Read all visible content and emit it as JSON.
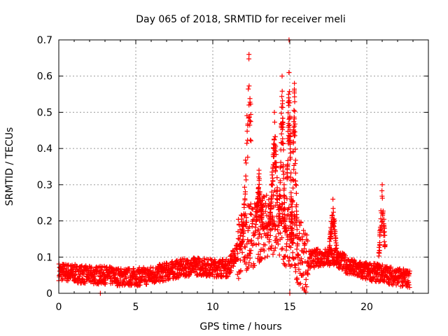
{
  "chart_data": {
    "type": "scatter",
    "title": "Day 065 of 2018, SRMTID for receiver meli",
    "xlabel": "GPS time / hours",
    "ylabel": "SRMTID / TECUs",
    "xlim": [
      0,
      24
    ],
    "ylim": [
      0,
      0.7
    ],
    "xticks": [
      0,
      5,
      10,
      15,
      20
    ],
    "xtick_labels": [
      "0",
      "5",
      "10",
      "15",
      "20"
    ],
    "yticks": [
      0,
      0.1,
      0.2,
      0.3,
      0.4,
      0.5,
      0.6,
      0.7
    ],
    "ytick_labels": [
      "0",
      "0.1",
      "0.2",
      "0.3",
      "0.4",
      "0.5",
      "0.6",
      "0.7"
    ],
    "grid": true,
    "marker": "+",
    "color": "#ff0000",
    "series_trend": [
      {
        "x": 0.0,
        "y": 0.06
      },
      {
        "x": 1.0,
        "y": 0.055
      },
      {
        "x": 2.0,
        "y": 0.05
      },
      {
        "x": 3.0,
        "y": 0.05
      },
      {
        "x": 4.0,
        "y": 0.045
      },
      {
        "x": 5.0,
        "y": 0.045
      },
      {
        "x": 6.0,
        "y": 0.05
      },
      {
        "x": 7.0,
        "y": 0.06
      },
      {
        "x": 8.0,
        "y": 0.07
      },
      {
        "x": 9.0,
        "y": 0.075
      },
      {
        "x": 10.0,
        "y": 0.07
      },
      {
        "x": 11.0,
        "y": 0.07
      },
      {
        "x": 12.0,
        "y": 0.15
      },
      {
        "x": 13.0,
        "y": 0.17
      },
      {
        "x": 14.0,
        "y": 0.2
      },
      {
        "x": 15.0,
        "y": 0.15
      },
      {
        "x": 16.0,
        "y": 0.09
      },
      {
        "x": 17.0,
        "y": 0.1
      },
      {
        "x": 18.0,
        "y": 0.1
      },
      {
        "x": 19.0,
        "y": 0.07
      },
      {
        "x": 20.0,
        "y": 0.06
      },
      {
        "x": 21.0,
        "y": 0.055
      },
      {
        "x": 22.0,
        "y": 0.045
      },
      {
        "x": 22.8,
        "y": 0.04
      }
    ],
    "bursts": [
      {
        "x_range": [
          11.7,
          12.5
        ],
        "peak": 0.66,
        "peak_x": 12.35
      },
      {
        "x_range": [
          12.8,
          13.3
        ],
        "peak": 0.34,
        "peak_x": 13.0
      },
      {
        "x_range": [
          13.6,
          14.2
        ],
        "peak": 0.5,
        "peak_x": 14.0
      },
      {
        "x_range": [
          14.3,
          14.7
        ],
        "peak": 0.6,
        "peak_x": 14.5
      },
      {
        "x_range": [
          14.8,
          15.2
        ],
        "peak": 0.7,
        "peak_x": 14.95
      },
      {
        "x_range": [
          15.1,
          15.5
        ],
        "peak": 0.58,
        "peak_x": 15.3
      },
      {
        "x_range": [
          17.5,
          18.1
        ],
        "peak": 0.26,
        "peak_x": 17.8
      },
      {
        "x_range": [
          20.6,
          21.2
        ],
        "peak": 0.3,
        "peak_x": 21.0
      }
    ],
    "zero_points": [
      {
        "x": 2.7,
        "y": 0.0
      },
      {
        "x": 15.0,
        "y": 0.0
      }
    ],
    "x_data_extent": [
      0,
      22.8
    ]
  }
}
